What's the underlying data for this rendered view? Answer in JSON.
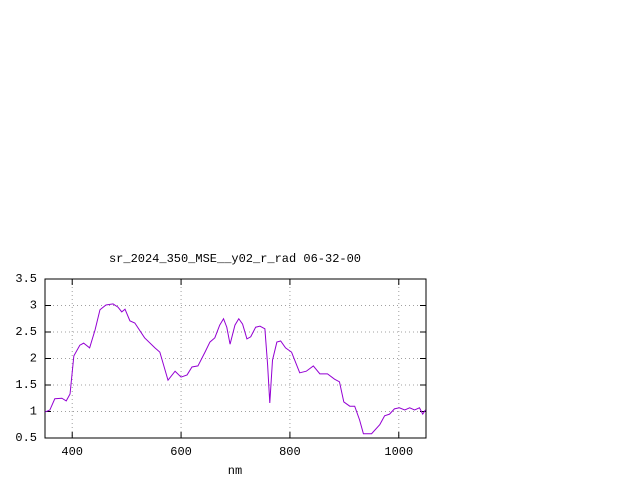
{
  "chart_data": {
    "type": "line",
    "title": "sr_2024_350_MSE__y02_r_rad 06-32-00",
    "x_label": "nm",
    "xlim": [
      350,
      1050
    ],
    "xticks": [
      400,
      600,
      800,
      1000
    ],
    "ylim": [
      0.5,
      3.5
    ],
    "yticks": [
      0.5,
      1,
      1.5,
      2,
      2.5,
      3,
      3.5
    ],
    "grid": true,
    "series": [
      {
        "color": "#9400d3",
        "x": [
          350,
          359,
          368,
          381,
          389,
          396,
          403,
          414,
          421,
          432,
          442,
          451,
          462,
          475,
          484,
          491,
          497,
          506,
          515,
          533,
          552,
          561,
          576,
          589,
          600,
          611,
          620,
          631,
          644,
          653,
          662,
          671,
          678,
          684,
          690,
          699,
          706,
          713,
          721,
          728,
          737,
          745,
          754,
          759,
          763,
          768,
          776,
          783,
          792,
          803,
          818,
          830,
          843,
          855,
          869,
          882,
          891,
          899,
          910,
          919,
          928,
          935,
          950,
          965,
          974,
          983,
          992,
          1001,
          1011,
          1020,
          1029,
          1038,
          1044,
          1049
        ],
        "values": [
          0.99,
          1.03,
          1.24,
          1.25,
          1.2,
          1.33,
          2.05,
          2.25,
          2.29,
          2.2,
          2.54,
          2.92,
          3.01,
          3.03,
          2.97,
          2.88,
          2.93,
          2.71,
          2.67,
          2.39,
          2.2,
          2.12,
          1.59,
          1.76,
          1.65,
          1.69,
          1.84,
          1.86,
          2.12,
          2.31,
          2.39,
          2.63,
          2.75,
          2.59,
          2.27,
          2.63,
          2.75,
          2.65,
          2.37,
          2.41,
          2.59,
          2.61,
          2.56,
          1.88,
          1.16,
          1.97,
          2.31,
          2.33,
          2.2,
          2.12,
          1.73,
          1.76,
          1.86,
          1.71,
          1.71,
          1.61,
          1.56,
          1.18,
          1.1,
          1.1,
          0.84,
          0.58,
          0.58,
          0.75,
          0.92,
          0.95,
          1.05,
          1.07,
          1.03,
          1.07,
          1.03,
          1.07,
          0.95,
          1.03
        ]
      }
    ]
  }
}
